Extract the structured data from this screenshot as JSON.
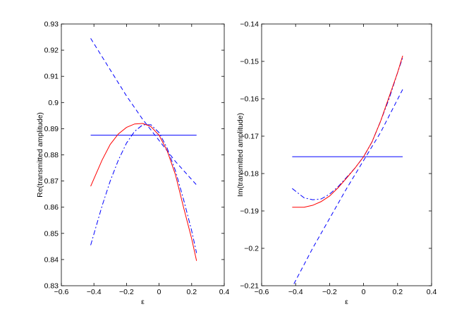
{
  "chart_data": [
    {
      "type": "line",
      "xlabel": "ε",
      "ylabel": "Re(transmitted amplitude)",
      "xlim": [
        -0.6,
        0.4
      ],
      "ylim": [
        0.83,
        0.93
      ],
      "xticks": [
        "−0.6",
        "−0.4",
        "−0.2",
        "0",
        "0.2",
        "0.4"
      ],
      "yticks": [
        "0.83",
        "0.84",
        "0.85",
        "0.86",
        "0.87",
        "0.88",
        "0.89",
        "0.9",
        "0.91",
        "0.92",
        "0.93"
      ],
      "grid": false,
      "legend": "none",
      "series": [
        {
          "color": "#0000ff",
          "style": "solid",
          "x": [
            -0.42,
            0.23
          ],
          "y": [
            0.8875,
            0.8875
          ]
        },
        {
          "color": "#0000ff",
          "style": "dashed",
          "x": [
            -0.42,
            -0.3,
            -0.2,
            -0.1,
            0.0,
            0.1,
            0.23
          ],
          "y": [
            0.9245,
            0.9125,
            0.9025,
            0.8935,
            0.8855,
            0.8775,
            0.8685
          ]
        },
        {
          "color": "#0000ff",
          "style": "dashdot",
          "x": [
            -0.42,
            -0.35,
            -0.3,
            -0.25,
            -0.2,
            -0.15,
            -0.1,
            -0.05,
            0.0,
            0.05,
            0.1,
            0.15,
            0.2,
            0.23
          ],
          "y": [
            0.8455,
            0.8605,
            0.87,
            0.878,
            0.8845,
            0.889,
            0.8915,
            0.8915,
            0.8885,
            0.8825,
            0.874,
            0.863,
            0.851,
            0.8425
          ]
        },
        {
          "color": "#ff0000",
          "style": "solid",
          "x": [
            -0.42,
            -0.35,
            -0.3,
            -0.25,
            -0.2,
            -0.15,
            -0.1,
            -0.05,
            0.0,
            0.05,
            0.1,
            0.15,
            0.2,
            0.23
          ],
          "y": [
            0.868,
            0.878,
            0.884,
            0.888,
            0.8905,
            0.8918,
            0.892,
            0.8908,
            0.8875,
            0.8815,
            0.8725,
            0.86,
            0.848,
            0.8395
          ]
        }
      ]
    },
    {
      "type": "line",
      "xlabel": "ε",
      "ylabel": "Im(transmitted amplitude)",
      "xlim": [
        -0.6,
        0.4
      ],
      "ylim": [
        -0.21,
        -0.14
      ],
      "xticks": [
        "−0.6",
        "−0.4",
        "−0.2",
        "0",
        "0.2",
        "0.4"
      ],
      "yticks": [
        "−0.21",
        "−0.2",
        "−0.19",
        "−0.18",
        "−0.17",
        "−0.16",
        "−0.15",
        "−0.14"
      ],
      "grid": false,
      "legend": "none",
      "series": [
        {
          "color": "#0000ff",
          "style": "solid",
          "x": [
            -0.42,
            0.23
          ],
          "y": [
            -0.1755,
            -0.1755
          ]
        },
        {
          "color": "#0000ff",
          "style": "dashed",
          "x": [
            -0.41,
            -0.3,
            -0.2,
            -0.1,
            0.0,
            0.1,
            0.23
          ],
          "y": [
            -0.2095,
            -0.2,
            -0.192,
            -0.184,
            -0.1765,
            -0.169,
            -0.1575
          ]
        },
        {
          "color": "#0000ff",
          "style": "dashdot",
          "x": [
            -0.42,
            -0.35,
            -0.3,
            -0.25,
            -0.2,
            -0.15,
            -0.1,
            -0.05,
            0.0,
            0.05,
            0.1,
            0.15,
            0.2,
            0.23
          ],
          "y": [
            -0.184,
            -0.1865,
            -0.187,
            -0.1868,
            -0.1855,
            -0.1835,
            -0.181,
            -0.1785,
            -0.1755,
            -0.1715,
            -0.166,
            -0.16,
            -0.153,
            -0.149
          ]
        },
        {
          "color": "#ff0000",
          "style": "solid",
          "x": [
            -0.42,
            -0.35,
            -0.3,
            -0.25,
            -0.2,
            -0.15,
            -0.1,
            -0.05,
            0.0,
            0.05,
            0.1,
            0.15,
            0.2,
            0.23
          ],
          "y": [
            -0.189,
            -0.189,
            -0.1885,
            -0.1875,
            -0.186,
            -0.1838,
            -0.1812,
            -0.1785,
            -0.1755,
            -0.1715,
            -0.166,
            -0.1595,
            -0.153,
            -0.1485
          ]
        }
      ]
    }
  ]
}
